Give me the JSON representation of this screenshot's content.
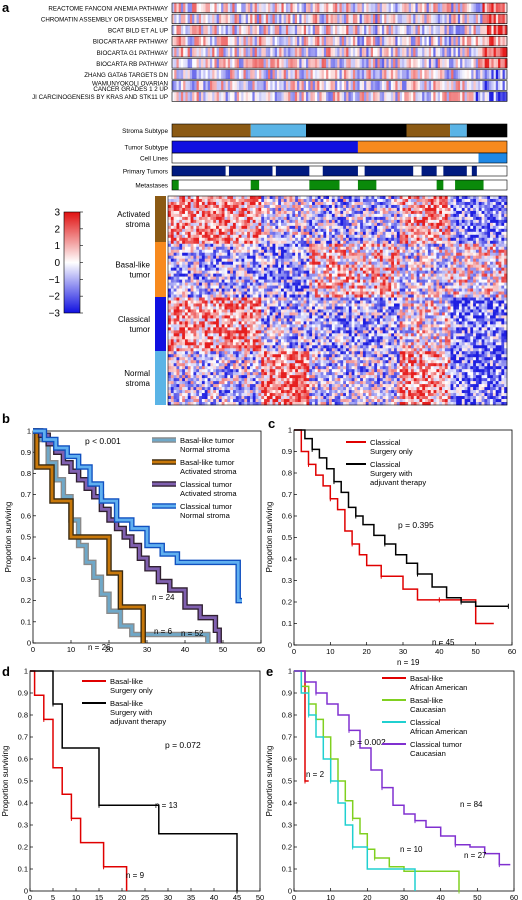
{
  "panels": {
    "a": {
      "letter": "a",
      "pathways": [
        "REACTOME FANCONI ANEMIA PATHWAY",
        "CHROMATIN ASSEMBLY OR DISASSEMBLY",
        "BCAT BILD ET AL UP",
        "BIOCARTA ARF PATHWAY",
        "BIOCARTA G1 PATHWAY",
        "BIOCARTA RB PATHWAY",
        "ZHANG GATA6 TARGETS DN",
        [
          "WAMUNYOKOLI OVARIAN",
          "CANCER GRADES 1 2 UP"
        ],
        "JI CARCINOGENESIS BY KRAS AND STK11 UP"
      ],
      "annotation_rows": [
        "Stroma Subtype",
        "Tumor Subtype",
        "Cell Lines",
        "Primary Tumors",
        "Metastases"
      ],
      "stroma_segments": [
        {
          "from": 0.0,
          "to": 0.235,
          "color": "#8B5A14"
        },
        {
          "from": 0.235,
          "to": 0.4,
          "color": "#5AB4E6"
        },
        {
          "from": 0.4,
          "to": 0.7,
          "color": "#000000"
        },
        {
          "from": 0.7,
          "to": 0.83,
          "color": "#8B5A14"
        },
        {
          "from": 0.83,
          "to": 0.88,
          "color": "#5AB4E6"
        },
        {
          "from": 0.88,
          "to": 1.0,
          "color": "#000000"
        }
      ],
      "tumor_segments": [
        {
          "from": 0.0,
          "to": 0.555,
          "color": "#1010E0"
        },
        {
          "from": 0.555,
          "to": 1.0,
          "color": "#F78A1E"
        }
      ],
      "cellline_segments": [
        {
          "from": 0.915,
          "to": 1.0,
          "color": "#1E88E5"
        }
      ],
      "primary_segments": [
        {
          "from": 0.0,
          "to": 0.16,
          "color": "#001A80"
        },
        {
          "from": 0.17,
          "to": 0.3,
          "color": "#001A80"
        },
        {
          "from": 0.31,
          "to": 0.41,
          "color": "#001A80"
        },
        {
          "from": 0.45,
          "to": 0.555,
          "color": "#001A80"
        },
        {
          "from": 0.575,
          "to": 0.72,
          "color": "#001A80"
        },
        {
          "from": 0.745,
          "to": 0.79,
          "color": "#001A80"
        },
        {
          "from": 0.81,
          "to": 0.88,
          "color": "#001A80"
        },
        {
          "from": 0.895,
          "to": 0.91,
          "color": "#001A80"
        }
      ],
      "metastases_segments": [
        {
          "from": 0.0,
          "to": 0.02,
          "color": "#0A8A0A"
        },
        {
          "from": 0.235,
          "to": 0.26,
          "color": "#0A8A0A"
        },
        {
          "from": 0.41,
          "to": 0.5,
          "color": "#0A8A0A"
        },
        {
          "from": 0.555,
          "to": 0.61,
          "color": "#0A8A0A"
        },
        {
          "from": 0.79,
          "to": 0.81,
          "color": "#0A8A0A"
        },
        {
          "from": 0.845,
          "to": 0.93,
          "color": "#0A8A0A"
        }
      ],
      "colorbar_ticks": [
        "3",
        "2",
        "1",
        "0",
        "−1",
        "−2",
        "−3"
      ],
      "groups": [
        {
          "lines": [
            "Activated",
            "stroma"
          ],
          "color": "#8B5A14"
        },
        {
          "lines": [
            "Basal-like",
            "tumor"
          ],
          "color": "#F78A1E"
        },
        {
          "lines": [
            "Classical",
            "tumor"
          ],
          "color": "#1010E0"
        },
        {
          "lines": [
            "Normal",
            "stroma"
          ],
          "color": "#5AB4E6"
        }
      ]
    },
    "b": {
      "letter": "b",
      "pvalue": "p < 0.001",
      "ylabel": "Proportion surviving",
      "legend": [
        [
          "Basal-like tumor",
          "Normal stroma"
        ],
        [
          "Basal-like tumor",
          "Activated stroma"
        ],
        [
          "Classical tumor",
          "Activated stroma"
        ],
        [
          "Classical tumor",
          "Normal stroma"
        ]
      ],
      "n_labels": [
        "n = 24",
        "n = 52",
        "n = 6",
        "n = 26"
      ]
    },
    "c": {
      "letter": "c",
      "pvalue": "p = 0.395",
      "ylabel": "Proportion surviving",
      "legend": [
        [
          "Classical",
          "Surgery only"
        ],
        [
          "Classical",
          "Surgery with",
          "adjuvant therapy"
        ]
      ],
      "n_labels": [
        "n = 45",
        "n = 19"
      ]
    },
    "d": {
      "letter": "d",
      "pvalue": "p = 0.072",
      "ylabel": "Proportion surviving",
      "legend": [
        [
          "Basal-like",
          "Surgery only"
        ],
        [
          "Basal-like",
          "Surgery with",
          "adjuvant therapy"
        ]
      ],
      "n_labels": [
        "n = 13",
        "n = 9"
      ]
    },
    "e": {
      "letter": "e",
      "pvalue": "p = 0.002",
      "ylabel": "Proportion surviving",
      "legend": [
        [
          "Basal-like",
          "African American"
        ],
        [
          "Basal-like",
          "Caucasian"
        ],
        [
          "Classical",
          "African American"
        ],
        [
          "Classical tumor",
          "Caucasian"
        ]
      ],
      "n_labels": [
        "n = 2",
        "n = 84",
        "n = 10",
        "n = 27"
      ]
    }
  },
  "chart_data": [
    {
      "panel": "b",
      "type": "line",
      "xlim": [
        0,
        60
      ],
      "ylim": [
        0,
        1
      ],
      "xticks": [
        0,
        10,
        20,
        30,
        40,
        50,
        60
      ],
      "yticks": [
        0,
        0.1,
        0.2,
        0.3,
        0.4,
        0.5,
        0.6,
        0.7,
        0.8,
        0.9,
        1
      ],
      "series": [
        {
          "name": "Basal-like tumor Normal stroma",
          "color": "#6FA8C8",
          "outline": "#8A8A8A",
          "x": [
            0,
            2,
            4,
            6,
            8,
            10,
            12,
            14,
            16,
            18,
            20,
            23,
            26,
            46
          ],
          "y": [
            1,
            0.96,
            0.85,
            0.77,
            0.69,
            0.58,
            0.46,
            0.38,
            0.31,
            0.23,
            0.15,
            0.08,
            0.04,
            0
          ]
        },
        {
          "name": "Basal-like tumor Activated stroma",
          "color": "#C8780A",
          "outline": "#3A2A10",
          "x": [
            0,
            1,
            3,
            5,
            8,
            10,
            13,
            17,
            20,
            23,
            26,
            29
          ],
          "y": [
            1,
            0.83,
            0.83,
            0.67,
            0.67,
            0.5,
            0.5,
            0.5,
            0.33,
            0.17,
            0.17,
            0
          ]
        },
        {
          "name": "Classical tumor Activated stroma",
          "color": "#8060B0",
          "outline": "#302030",
          "x": [
            0,
            2,
            4,
            6,
            8,
            10,
            12,
            14,
            16,
            18,
            20,
            22,
            24,
            26,
            28,
            30,
            33,
            36,
            40,
            44,
            48,
            49
          ],
          "y": [
            1,
            0.98,
            0.94,
            0.9,
            0.85,
            0.81,
            0.77,
            0.73,
            0.69,
            0.63,
            0.58,
            0.54,
            0.5,
            0.46,
            0.4,
            0.35,
            0.29,
            0.25,
            0.17,
            0.12,
            0.06,
            0
          ]
        },
        {
          "name": "Classical tumor Normal stroma",
          "color": "#60B0F0",
          "outline": "#1050C0",
          "x": [
            0,
            3,
            6,
            9,
            12,
            15,
            18,
            22,
            26,
            30,
            34,
            38,
            42,
            46,
            54,
            55
          ],
          "y": [
            1,
            0.96,
            0.92,
            0.88,
            0.83,
            0.75,
            0.67,
            0.58,
            0.54,
            0.46,
            0.42,
            0.38,
            0.38,
            0.38,
            0.2,
            0.2
          ]
        }
      ]
    },
    {
      "panel": "c",
      "type": "line",
      "xlim": [
        0,
        60
      ],
      "ylim": [
        0,
        1
      ],
      "xticks": [
        0,
        10,
        20,
        30,
        40,
        50,
        60
      ],
      "yticks": [
        0,
        0.1,
        0.2,
        0.3,
        0.4,
        0.5,
        0.6,
        0.7,
        0.8,
        0.9,
        1
      ],
      "series": [
        {
          "name": "Classical Surgery only",
          "color": "#E00000",
          "x": [
            0,
            2,
            4,
            6,
            8,
            10,
            12,
            14,
            16,
            18,
            20,
            24,
            30,
            34,
            40,
            50,
            55
          ],
          "y": [
            1,
            0.9,
            0.84,
            0.79,
            0.74,
            0.68,
            0.63,
            0.53,
            0.47,
            0.42,
            0.37,
            0.32,
            0.26,
            0.21,
            0.21,
            0.1,
            0.1
          ]
        },
        {
          "name": "Classical Surgery with adjuvant therapy",
          "color": "#000000",
          "x": [
            0,
            3,
            5,
            7,
            9,
            11,
            13,
            15,
            17,
            19,
            22,
            25,
            28,
            31,
            34,
            38,
            42,
            46,
            50,
            55,
            59
          ],
          "y": [
            1,
            0.96,
            0.91,
            0.87,
            0.82,
            0.76,
            0.71,
            0.64,
            0.6,
            0.56,
            0.51,
            0.47,
            0.42,
            0.38,
            0.33,
            0.27,
            0.22,
            0.2,
            0.18,
            0.18,
            0.18
          ]
        }
      ]
    },
    {
      "panel": "d",
      "type": "line",
      "xlim": [
        0,
        50
      ],
      "ylim": [
        0,
        1
      ],
      "xticks": [
        0,
        5,
        10,
        15,
        20,
        25,
        30,
        35,
        40,
        45,
        50
      ],
      "yticks": [
        0,
        0.1,
        0.2,
        0.3,
        0.4,
        0.5,
        0.6,
        0.7,
        0.8,
        0.9,
        1
      ],
      "series": [
        {
          "name": "Basal-like Surgery only",
          "color": "#E00000",
          "x": [
            0,
            1,
            3,
            5,
            7,
            9,
            11,
            13,
            16,
            21
          ],
          "y": [
            1,
            0.89,
            0.78,
            0.56,
            0.44,
            0.33,
            0.22,
            0.22,
            0.11,
            0
          ]
        },
        {
          "name": "Basal-like Surgery with adjuvant therapy",
          "color": "#000000",
          "x": [
            0,
            3,
            5,
            7,
            12,
            15,
            28,
            44,
            45
          ],
          "y": [
            1,
            1,
            0.85,
            0.65,
            0.65,
            0.39,
            0.26,
            0.26,
            0
          ]
        }
      ]
    },
    {
      "panel": "e",
      "type": "line",
      "xlim": [
        0,
        60
      ],
      "ylim": [
        0,
        1
      ],
      "xticks": [
        0,
        10,
        20,
        30,
        40,
        50,
        60
      ],
      "yticks": [
        0,
        0.1,
        0.2,
        0.3,
        0.4,
        0.5,
        0.6,
        0.7,
        0.8,
        0.9,
        1
      ],
      "series": [
        {
          "name": "Basal-like African American",
          "color": "#E00000",
          "x": [
            0,
            2,
            3,
            4
          ],
          "y": [
            1,
            1,
            0.5,
            0.5
          ]
        },
        {
          "name": "Basal-like Caucasian",
          "color": "#80D020",
          "x": [
            0,
            2,
            4,
            6,
            8,
            10,
            12,
            14,
            16,
            18,
            20,
            22,
            26,
            30,
            45
          ],
          "y": [
            1,
            0.93,
            0.85,
            0.78,
            0.7,
            0.6,
            0.5,
            0.41,
            0.33,
            0.26,
            0.19,
            0.15,
            0.11,
            0.09,
            0
          ]
        },
        {
          "name": "Classical African American",
          "color": "#20D0D0",
          "x": [
            0,
            2,
            4,
            6,
            8,
            10,
            12,
            14,
            16,
            20,
            33
          ],
          "y": [
            1,
            0.9,
            0.8,
            0.7,
            0.6,
            0.5,
            0.4,
            0.3,
            0.2,
            0.1,
            0
          ]
        },
        {
          "name": "Classical tumor Caucasian",
          "color": "#8030D0",
          "x": [
            0,
            3,
            6,
            9,
            12,
            15,
            18,
            21,
            24,
            27,
            30,
            33,
            36,
            40,
            44,
            48,
            52,
            56,
            59
          ],
          "y": [
            1,
            0.95,
            0.9,
            0.85,
            0.8,
            0.73,
            0.65,
            0.55,
            0.47,
            0.39,
            0.35,
            0.32,
            0.29,
            0.25,
            0.21,
            0.2,
            0.17,
            0.12,
            0.12
          ]
        }
      ]
    }
  ]
}
